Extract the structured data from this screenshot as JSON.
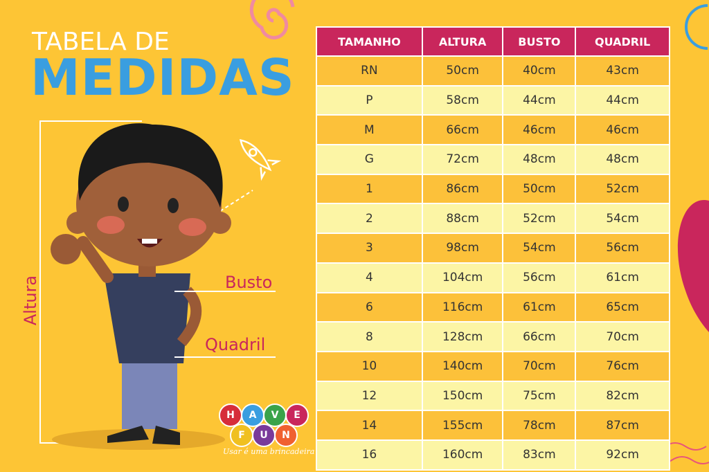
{
  "title": {
    "line1": "TABELA DE",
    "line2": "MEDIDAS"
  },
  "labels": {
    "busto": "Busto",
    "quadril": "Quadril",
    "altura": "Altura"
  },
  "logo": {
    "letters": [
      "H",
      "A",
      "V",
      "E",
      "F",
      "U",
      "N"
    ],
    "tagline": "Usar é uma brincadeira"
  },
  "colors": {
    "background": "#fdc535",
    "header": "#c9265c",
    "accent_blue": "#3a9ee0",
    "row_odd": "#fcc13a",
    "row_even": "#fcf5a5"
  },
  "table": {
    "headers": [
      "TAMANHO",
      "ALTURA",
      "BUSTO",
      "QUADRIL"
    ],
    "rows": [
      [
        "RN",
        "50cm",
        "40cm",
        "43cm"
      ],
      [
        "P",
        "58cm",
        "44cm",
        "44cm"
      ],
      [
        "M",
        "66cm",
        "46cm",
        "46cm"
      ],
      [
        "G",
        "72cm",
        "48cm",
        "48cm"
      ],
      [
        "1",
        "86cm",
        "50cm",
        "52cm"
      ],
      [
        "2",
        "88cm",
        "52cm",
        "54cm"
      ],
      [
        "3",
        "98cm",
        "54cm",
        "56cm"
      ],
      [
        "4",
        "104cm",
        "56cm",
        "61cm"
      ],
      [
        "6",
        "116cm",
        "61cm",
        "65cm"
      ],
      [
        "8",
        "128cm",
        "66cm",
        "70cm"
      ],
      [
        "10",
        "140cm",
        "70cm",
        "76cm"
      ],
      [
        "12",
        "150cm",
        "75cm",
        "82cm"
      ],
      [
        "14",
        "155cm",
        "78cm",
        "87cm"
      ],
      [
        "16",
        "160cm",
        "83cm",
        "92cm"
      ]
    ]
  }
}
